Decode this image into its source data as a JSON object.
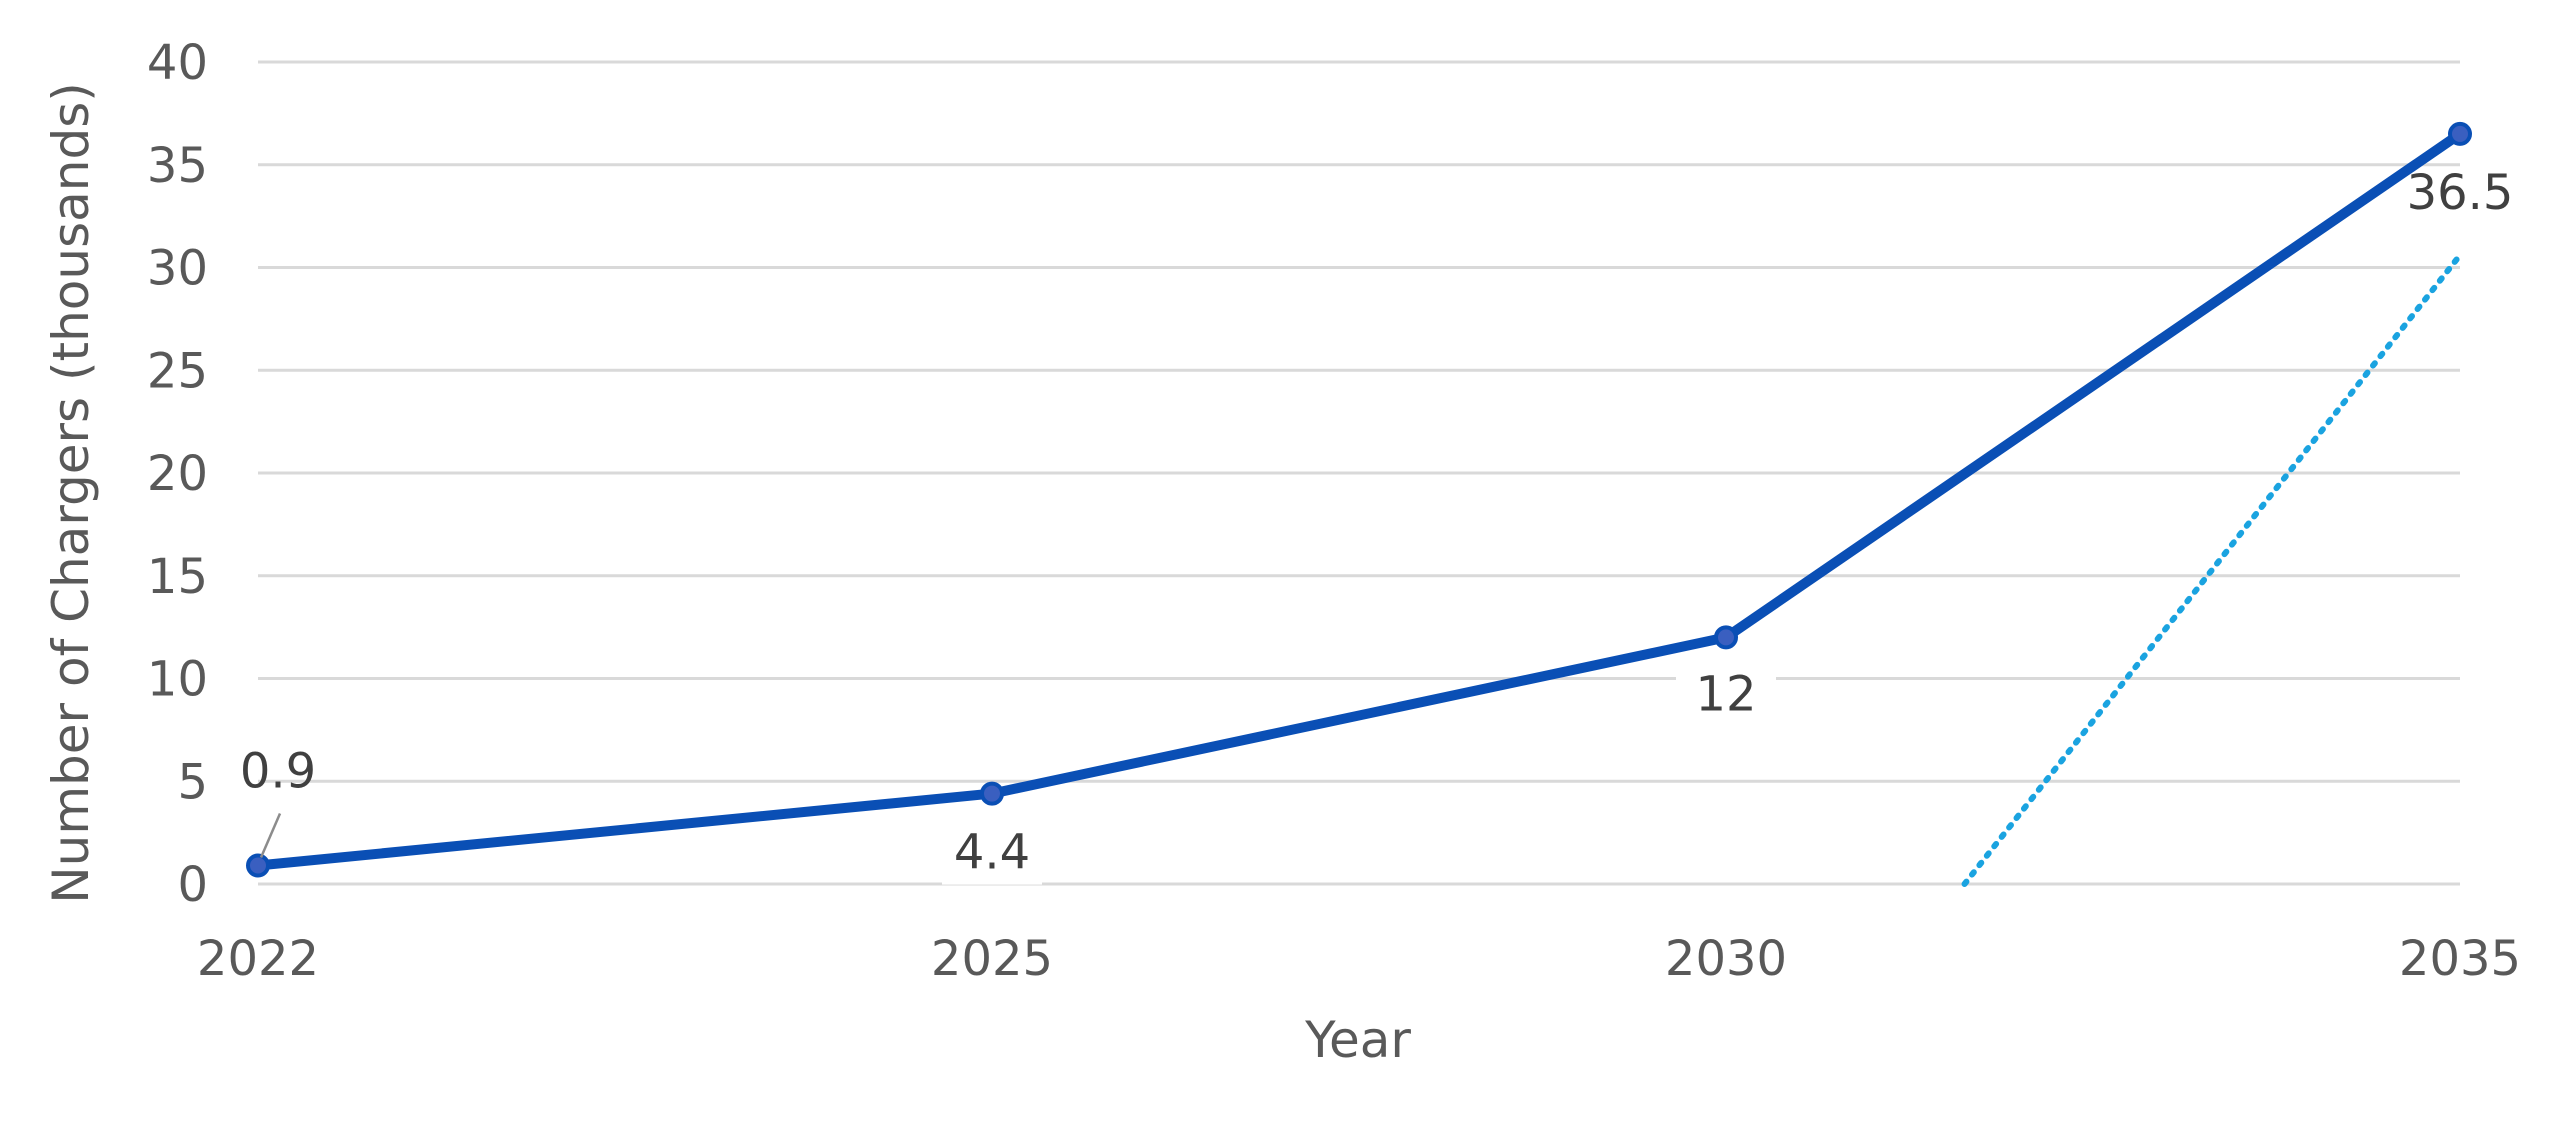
{
  "chart_data": {
    "type": "line",
    "title": "",
    "xlabel": "Year",
    "ylabel": "Number of Chargers (thousands)",
    "x": [
      "2022",
      "2025",
      "2030",
      "2035"
    ],
    "ylim": [
      0,
      40
    ],
    "yticks": [
      0,
      5,
      10,
      15,
      20,
      25,
      30,
      35,
      40
    ],
    "grid": true,
    "legend": "none",
    "series": [
      {
        "name": "",
        "values": [
          0.9,
          4.4,
          12,
          36.5
        ],
        "data_labels": [
          "0.9",
          "4.4",
          "12",
          "36.5"
        ],
        "color": "#0a4fb5",
        "marker_color": "#3a5fc0"
      }
    ],
    "trendline": {
      "type": "linear",
      "style": "dotted",
      "color": "#1aa3e0",
      "start": [
        2.325,
        0
      ],
      "end": [
        3,
        30.6
      ]
    }
  }
}
